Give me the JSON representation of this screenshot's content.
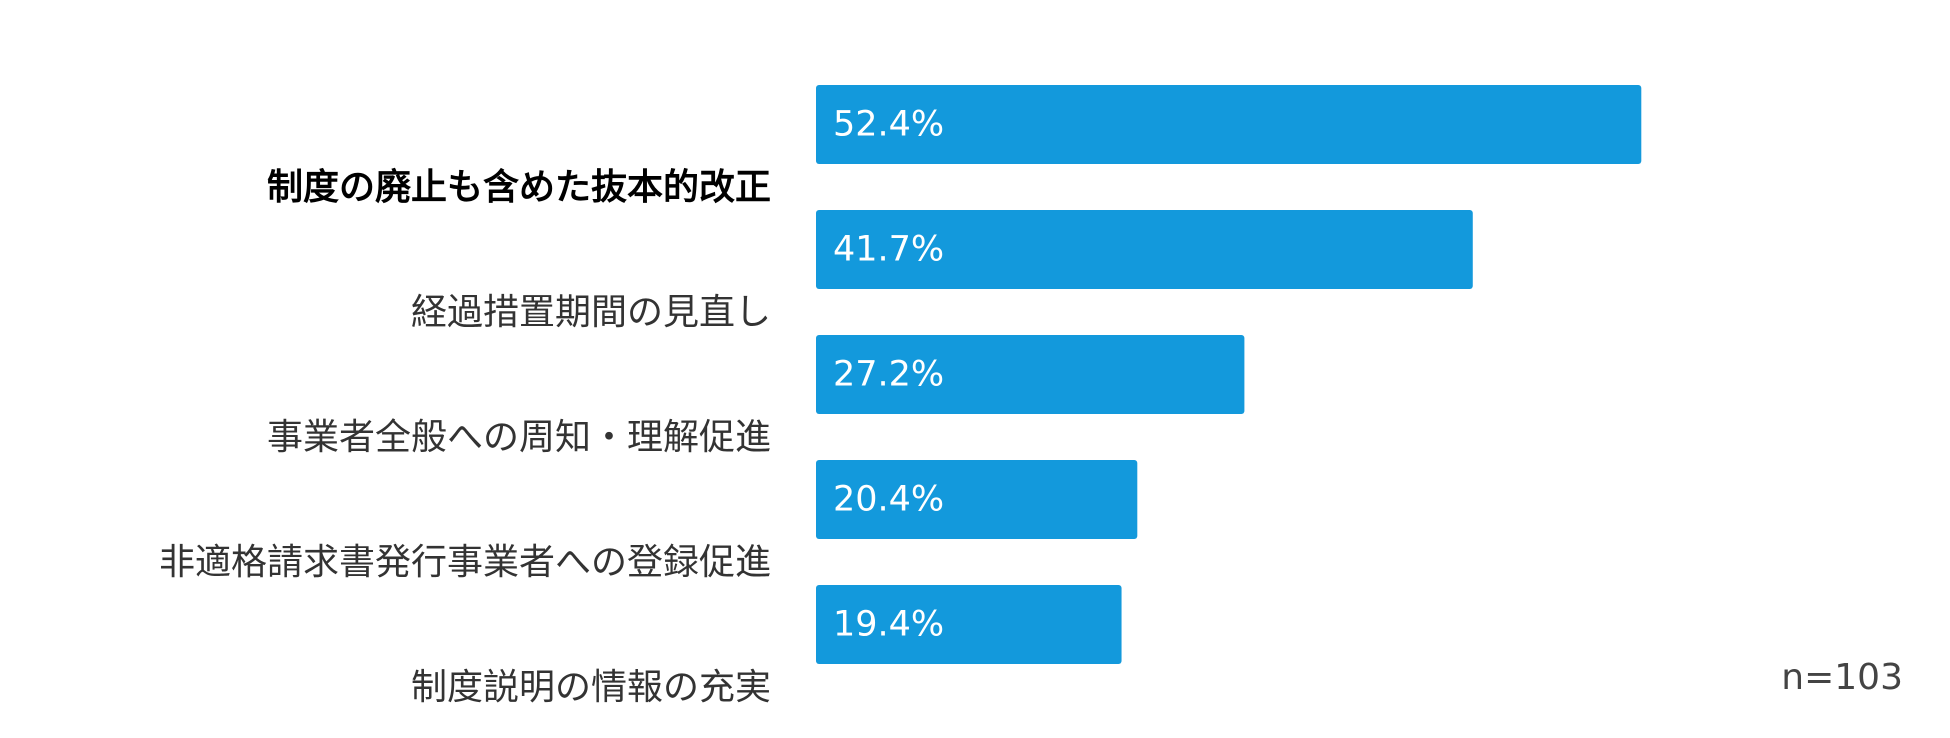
{
  "chart_data": {
    "type": "barh",
    "categories": [
      "制度の廃止も含めた抜本的改正",
      "経過措置期間の見直し",
      "事業者全般への周知・理解促進",
      "非適格請求書発行事業者への登録促進",
      "制度説明の情報の充実"
    ],
    "values": [
      52.4,
      41.7,
      27.2,
      20.4,
      19.4
    ],
    "value_labels": [
      "52.4%",
      "41.7%",
      "27.2%",
      "20.4%",
      "19.4%"
    ],
    "color": "#1399dc",
    "annotation": "n=103"
  }
}
